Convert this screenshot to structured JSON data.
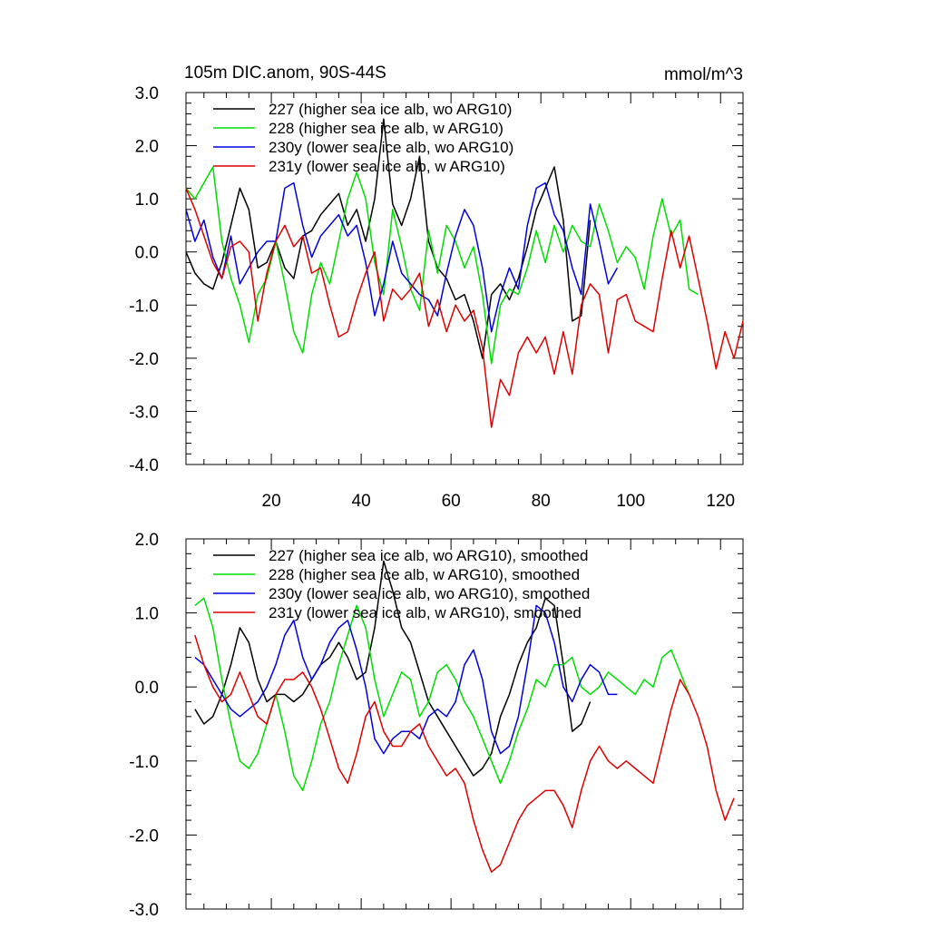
{
  "chart_data": [
    {
      "type": "line",
      "title": "105m DIC.anom, 90S-44S",
      "units": "mmol/m^3",
      "xlabel": "",
      "ylabel": "",
      "xlim": [
        1,
        125
      ],
      "ylim": [
        -4.0,
        3.0
      ],
      "y_ticks": [
        3.0,
        2.0,
        1.0,
        0.0,
        -1.0,
        -2.0,
        -3.0,
        -4.0
      ],
      "y_tick_labels": [
        "3.0",
        "2.0",
        "1.0",
        "0.0",
        "-1.0",
        "-2.0",
        "-3.0",
        "-4.0"
      ],
      "x_ticks": [
        20,
        40,
        60,
        80,
        100,
        120
      ],
      "x_tick_labels": [
        "20",
        "40",
        "60",
        "80",
        "100",
        "120"
      ],
      "grid": false,
      "legend_position": "top-left",
      "series": [
        {
          "name": "227 (higher sea ice alb, wo ARG10)",
          "color": "#000000",
          "x": [
            1,
            3,
            5,
            7,
            9,
            11,
            13,
            15,
            17,
            19,
            21,
            23,
            25,
            27,
            29,
            31,
            33,
            35,
            37,
            39,
            41,
            43,
            45,
            47,
            49,
            51,
            53,
            55,
            57,
            59,
            61,
            63,
            65,
            67,
            69,
            71,
            73,
            75,
            77,
            79,
            81,
            83,
            85,
            87,
            89,
            91
          ],
          "y": [
            0.0,
            -0.4,
            -0.6,
            -0.7,
            -0.2,
            0.5,
            1.2,
            0.8,
            -0.3,
            -0.2,
            0.2,
            -0.3,
            -0.5,
            0.3,
            0.4,
            0.7,
            0.9,
            1.1,
            0.5,
            0.8,
            0.2,
            1.0,
            2.5,
            0.9,
            0.5,
            1.0,
            1.8,
            0.2,
            -0.3,
            -0.5,
            -0.9,
            -0.8,
            -1.3,
            -2.0,
            -0.8,
            -0.6,
            -0.9,
            -0.5,
            0.1,
            0.8,
            1.2,
            1.6,
            0.6,
            -1.3,
            -1.2,
            0.6
          ]
        },
        {
          "name": "228 (higher sea ice alb, w ARG10)",
          "color": "#00dd00",
          "x": [
            1,
            3,
            5,
            7,
            9,
            11,
            13,
            15,
            17,
            19,
            21,
            23,
            25,
            27,
            29,
            31,
            33,
            35,
            37,
            39,
            41,
            43,
            45,
            47,
            49,
            51,
            53,
            55,
            57,
            59,
            61,
            63,
            65,
            67,
            69,
            71,
            73,
            75,
            77,
            79,
            81,
            83,
            85,
            87,
            89,
            91,
            93,
            95,
            97,
            99,
            101,
            103,
            105,
            107,
            109,
            111,
            113,
            115
          ],
          "y": [
            1.2,
            1.0,
            1.3,
            1.6,
            0.2,
            -0.5,
            -1.0,
            -1.7,
            -0.8,
            -0.5,
            0.2,
            -0.6,
            -1.5,
            -1.9,
            -0.8,
            -0.2,
            -0.6,
            0.2,
            1.0,
            1.5,
            1.0,
            -0.2,
            -0.8,
            0.8,
            0.1,
            -0.7,
            -1.1,
            0.4,
            -0.4,
            0.5,
            0.2,
            -0.3,
            0.1,
            -0.8,
            -2.1,
            -1.0,
            -0.7,
            -0.8,
            -0.3,
            0.4,
            -0.2,
            0.5,
            0.0,
            0.5,
            0.2,
            0.1,
            0.9,
            0.4,
            -0.2,
            0.1,
            -0.1,
            -0.7,
            0.3,
            1.0,
            0.3,
            0.6,
            -0.7,
            -0.8
          ]
        },
        {
          "name": "230y (lower sea ice alb, wo ARG10)",
          "color": "#0000dd",
          "x": [
            1,
            3,
            5,
            7,
            9,
            11,
            13,
            15,
            17,
            19,
            21,
            23,
            25,
            27,
            29,
            31,
            33,
            35,
            37,
            39,
            41,
            43,
            45,
            47,
            49,
            51,
            53,
            55,
            57,
            59,
            61,
            63,
            65,
            67,
            69,
            71,
            73,
            75,
            77,
            79,
            81,
            83,
            85,
            87,
            89,
            91,
            93,
            95,
            97
          ],
          "y": [
            0.8,
            0.2,
            0.6,
            -0.1,
            -0.5,
            0.3,
            -0.6,
            -0.3,
            0.0,
            0.2,
            0.2,
            1.2,
            1.3,
            0.5,
            -0.1,
            0.3,
            0.5,
            0.7,
            0.3,
            0.5,
            -0.2,
            -1.2,
            -0.6,
            0.2,
            -0.4,
            -0.6,
            -0.8,
            -0.9,
            -1.2,
            -0.4,
            0.3,
            0.8,
            0.5,
            -0.3,
            -1.5,
            -0.8,
            -0.3,
            -0.7,
            0.5,
            1.2,
            1.3,
            0.7,
            0.4,
            -0.3,
            -0.8,
            0.9,
            0.2,
            -0.6,
            -0.3
          ]
        },
        {
          "name": "231y (lower sea ice alb, w ARG10)",
          "color": "#dd0000",
          "x": [
            1,
            3,
            5,
            7,
            9,
            11,
            13,
            15,
            17,
            19,
            21,
            23,
            25,
            27,
            29,
            31,
            33,
            35,
            37,
            39,
            41,
            43,
            45,
            47,
            49,
            51,
            53,
            55,
            57,
            59,
            61,
            63,
            65,
            67,
            69,
            71,
            73,
            75,
            77,
            79,
            81,
            83,
            85,
            87,
            89,
            91,
            93,
            95,
            97,
            99,
            101,
            103,
            105,
            107,
            109,
            111,
            113,
            115,
            117,
            119,
            121,
            123,
            125
          ],
          "y": [
            1.2,
            0.8,
            0.3,
            -0.2,
            -0.5,
            0.1,
            0.2,
            0.0,
            -1.3,
            -0.4,
            0.2,
            0.5,
            0.1,
            0.3,
            -0.4,
            -0.3,
            -1.0,
            -1.6,
            -1.5,
            -0.9,
            -0.4,
            0.0,
            -1.3,
            -0.7,
            -0.9,
            -0.7,
            -0.4,
            -1.4,
            -0.9,
            -1.5,
            -1.0,
            -1.3,
            -1.1,
            -1.8,
            -3.3,
            -2.4,
            -2.7,
            -1.9,
            -1.6,
            -1.9,
            -1.6,
            -2.3,
            -1.5,
            -2.3,
            -1.0,
            -0.6,
            -0.8,
            -1.9,
            -0.9,
            -0.8,
            -1.3,
            -1.4,
            -1.5,
            -0.5,
            0.4,
            -0.3,
            0.3,
            -0.5,
            -1.3,
            -2.2,
            -1.5,
            -2.0,
            -1.3
          ]
        }
      ]
    },
    {
      "type": "line",
      "title": "",
      "xlabel": "",
      "ylabel": "",
      "xlim": [
        1,
        125
      ],
      "ylim": [
        -3.0,
        2.0
      ],
      "y_ticks": [
        2.0,
        1.0,
        0.0,
        -1.0,
        -2.0,
        -3.0
      ],
      "y_tick_labels": [
        "2.0",
        "1.0",
        "0.0",
        "-1.0",
        "-2.0",
        "-3.0"
      ],
      "x_ticks": [
        20,
        40,
        60,
        80,
        100,
        120
      ],
      "x_tick_labels": [],
      "grid": false,
      "legend_position": "top-left",
      "series": [
        {
          "name": "227 (higher sea ice alb, wo ARG10), smoothed",
          "color": "#000000",
          "x": [
            3,
            5,
            7,
            9,
            11,
            13,
            15,
            17,
            19,
            21,
            23,
            25,
            27,
            29,
            31,
            33,
            35,
            37,
            39,
            41,
            43,
            45,
            47,
            49,
            51,
            53,
            55,
            57,
            59,
            61,
            63,
            65,
            67,
            69,
            71,
            73,
            75,
            77,
            79,
            81,
            83,
            85,
            87,
            89,
            91
          ],
          "y": [
            -0.3,
            -0.5,
            -0.4,
            -0.1,
            0.3,
            0.8,
            0.6,
            0.1,
            -0.2,
            -0.1,
            -0.1,
            -0.2,
            -0.1,
            0.1,
            0.3,
            0.4,
            0.6,
            0.4,
            0.1,
            0.2,
            0.8,
            1.7,
            1.3,
            0.8,
            0.6,
            0.2,
            -0.2,
            -0.4,
            -0.6,
            -0.8,
            -1.0,
            -1.2,
            -1.1,
            -0.9,
            -0.4,
            -0.1,
            0.3,
            0.6,
            0.8,
            1.2,
            1.1,
            0.3,
            -0.6,
            -0.5,
            -0.2
          ]
        },
        {
          "name": "228 (higher sea ice alb, w ARG10), smoothed",
          "color": "#00dd00",
          "x": [
            3,
            5,
            7,
            9,
            11,
            13,
            15,
            17,
            19,
            21,
            23,
            25,
            27,
            29,
            31,
            33,
            35,
            37,
            39,
            41,
            43,
            45,
            47,
            49,
            51,
            53,
            55,
            57,
            59,
            61,
            63,
            65,
            67,
            69,
            71,
            73,
            75,
            77,
            79,
            81,
            83,
            85,
            87,
            89,
            91,
            93,
            95,
            97,
            99,
            101,
            103,
            105,
            107,
            109,
            111,
            113
          ],
          "y": [
            1.1,
            1.2,
            0.8,
            0.1,
            -0.5,
            -1.0,
            -1.1,
            -0.9,
            -0.5,
            -0.1,
            -0.6,
            -1.2,
            -1.4,
            -1.0,
            -0.5,
            -0.2,
            0.3,
            0.7,
            1.1,
            0.8,
            0.1,
            -0.4,
            -0.1,
            0.2,
            0.1,
            -0.4,
            -0.2,
            0.2,
            0.3,
            0.1,
            -0.2,
            -0.4,
            -0.7,
            -1.0,
            -1.3,
            -1.0,
            -0.6,
            -0.3,
            0.1,
            0.0,
            0.3,
            0.3,
            0.4,
            0.0,
            -0.1,
            0.0,
            0.2,
            0.1,
            0.0,
            -0.1,
            0.1,
            0.0,
            0.4,
            0.5,
            0.2,
            -0.1
          ]
        },
        {
          "name": "230y (lower sea ice alb, wo ARG10), smoothed",
          "color": "#0000dd",
          "x": [
            3,
            5,
            7,
            9,
            11,
            13,
            15,
            17,
            19,
            21,
            23,
            25,
            27,
            29,
            31,
            33,
            35,
            37,
            39,
            41,
            43,
            45,
            47,
            49,
            51,
            53,
            55,
            57,
            59,
            61,
            63,
            65,
            67,
            69,
            71,
            73,
            75,
            77,
            79,
            81,
            83,
            85,
            87,
            89,
            91,
            93,
            95,
            97
          ],
          "y": [
            0.4,
            0.3,
            0.1,
            -0.1,
            -0.3,
            -0.4,
            -0.3,
            -0.2,
            0.0,
            0.3,
            0.7,
            0.9,
            0.4,
            0.1,
            0.3,
            0.6,
            0.8,
            0.9,
            0.5,
            0.0,
            -0.7,
            -0.9,
            -0.7,
            -0.6,
            -0.6,
            -0.7,
            -0.4,
            -0.3,
            -0.4,
            -0.2,
            0.3,
            0.5,
            0.1,
            -0.6,
            -0.9,
            -0.8,
            -0.4,
            0.3,
            1.1,
            1.0,
            0.6,
            0.0,
            -0.2,
            0.1,
            0.3,
            0.2,
            -0.1,
            -0.1
          ]
        },
        {
          "name": "231y (lower sea ice alb, w ARG10), smoothed",
          "color": "#dd0000",
          "x": [
            3,
            5,
            7,
            9,
            11,
            13,
            15,
            17,
            19,
            21,
            23,
            25,
            27,
            29,
            31,
            33,
            35,
            37,
            39,
            41,
            43,
            45,
            47,
            49,
            51,
            53,
            55,
            57,
            59,
            61,
            63,
            65,
            67,
            69,
            71,
            73,
            75,
            77,
            79,
            81,
            83,
            85,
            87,
            89,
            91,
            93,
            95,
            97,
            99,
            101,
            103,
            105,
            107,
            109,
            111,
            113,
            115,
            117,
            119,
            121,
            123
          ],
          "y": [
            0.7,
            0.3,
            0.0,
            -0.2,
            -0.1,
            0.2,
            -0.1,
            -0.4,
            -0.5,
            -0.1,
            0.1,
            0.1,
            0.2,
            0.0,
            -0.3,
            -0.7,
            -1.1,
            -1.3,
            -0.9,
            -0.4,
            -0.2,
            -0.6,
            -0.8,
            -0.8,
            -0.6,
            -0.5,
            -0.8,
            -1.0,
            -1.2,
            -1.1,
            -1.3,
            -1.8,
            -2.2,
            -2.5,
            -2.4,
            -2.1,
            -1.8,
            -1.6,
            -1.5,
            -1.4,
            -1.4,
            -1.6,
            -1.9,
            -1.4,
            -1.0,
            -0.8,
            -1.0,
            -1.1,
            -1.0,
            -1.1,
            -1.2,
            -1.3,
            -0.8,
            -0.3,
            0.1,
            -0.1,
            -0.4,
            -0.8,
            -1.4,
            -1.8,
            -1.5
          ]
        }
      ]
    }
  ]
}
